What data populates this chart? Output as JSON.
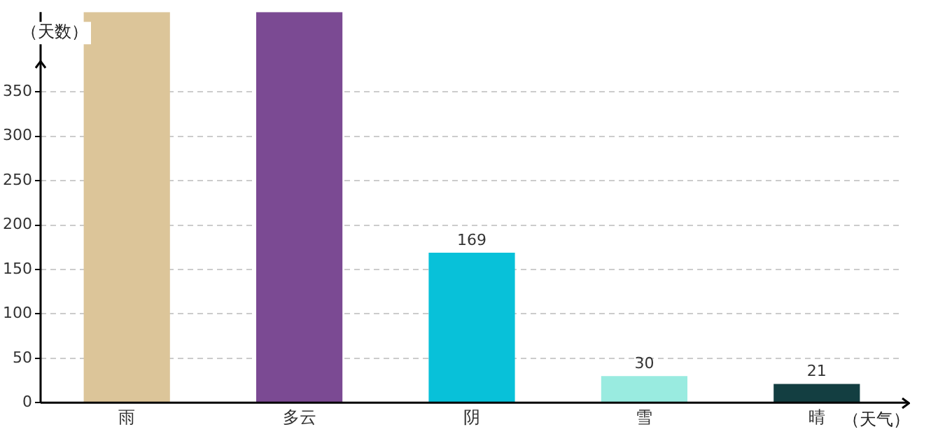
{
  "chart_data": {
    "type": "bar",
    "ylabel": "（天数）",
    "xlabel": "（天气）",
    "categories": [
      "雨",
      "多云",
      "阴",
      "雪",
      "晴"
    ],
    "values": [
      440,
      440,
      169,
      30,
      21
    ],
    "value_labels": [
      null,
      null,
      "169",
      "30",
      "21"
    ],
    "colors": [
      "#dcc599",
      "#7b4a93",
      "#08c1d9",
      "#99ebe0",
      "#133e41"
    ],
    "ylim": [
      0,
      440
    ],
    "yticks": [
      0,
      50,
      100,
      150,
      200,
      250,
      300,
      350
    ],
    "grid": "y"
  }
}
